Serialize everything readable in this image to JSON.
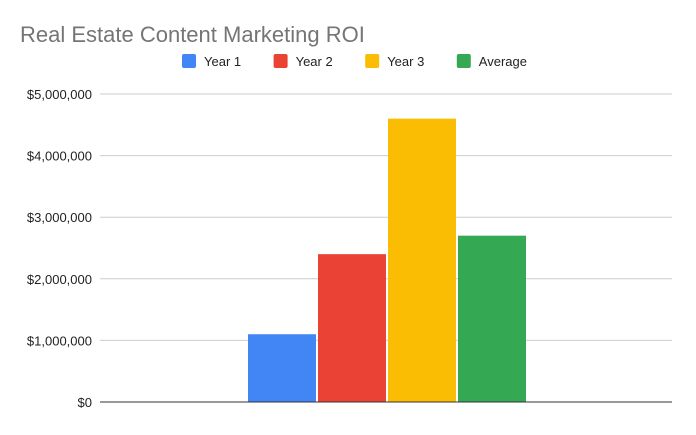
{
  "chart_data": {
    "type": "bar",
    "title": "Real Estate Content Marketing ROI",
    "xlabel": "",
    "ylabel": "",
    "categories": [
      ""
    ],
    "series": [
      {
        "name": "Year 1",
        "values": [
          1100000
        ],
        "color": "#4285f4"
      },
      {
        "name": "Year 2",
        "values": [
          2400000
        ],
        "color": "#ea4335"
      },
      {
        "name": "Year 3",
        "values": [
          4600000
        ],
        "color": "#fbbc04"
      },
      {
        "name": "Average",
        "values": [
          2700000
        ],
        "color": "#34a853"
      }
    ],
    "ylim": [
      0,
      5000000
    ],
    "yticks": [
      0,
      1000000,
      2000000,
      3000000,
      4000000,
      5000000
    ],
    "ytick_labels": [
      "$0",
      "$1,000,000",
      "$2,000,000",
      "$3,000,000",
      "$4,000,000",
      "$5,000,000"
    ],
    "grid": true,
    "legend_position": "top-center"
  }
}
